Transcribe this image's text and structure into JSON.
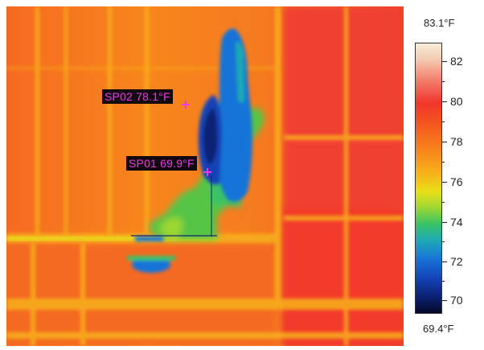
{
  "spots": [
    {
      "id": "SP02",
      "label": "SP02  78.1°F"
    },
    {
      "id": "SP01",
      "label": "SP01  69.9°F"
    }
  ],
  "scale": {
    "max_label": "83.1°F",
    "min_label": "69.4°F",
    "ticks": [
      "82",
      "80",
      "78",
      "76",
      "74",
      "72",
      "70"
    ]
  },
  "colors": {
    "label_text": "#e93be6",
    "label_bg": "#120810",
    "hot": "#f1352e",
    "warm": "#f7861c",
    "cool": "#1973d8",
    "coldest": "#060826"
  }
}
